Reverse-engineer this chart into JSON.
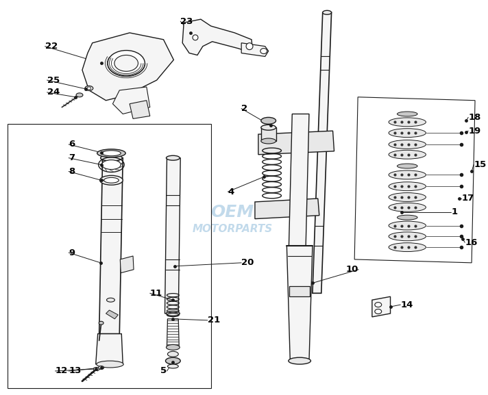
{
  "bg_color": "#ffffff",
  "line_color": "#1a1a1a",
  "label_color": "#000000",
  "gray_fill": "#e8e8e8",
  "light_fill": "#f5f5f5",
  "dark_fill": "#c8c8c8",
  "watermark_color": "#b8d4e8",
  "fig_width": 7.12,
  "fig_height": 5.77,
  "dpi": 100,
  "border_lw": 0.8,
  "tube_lw": 1.2,
  "label_fs": 9.5,
  "leader_lw": 0.7
}
